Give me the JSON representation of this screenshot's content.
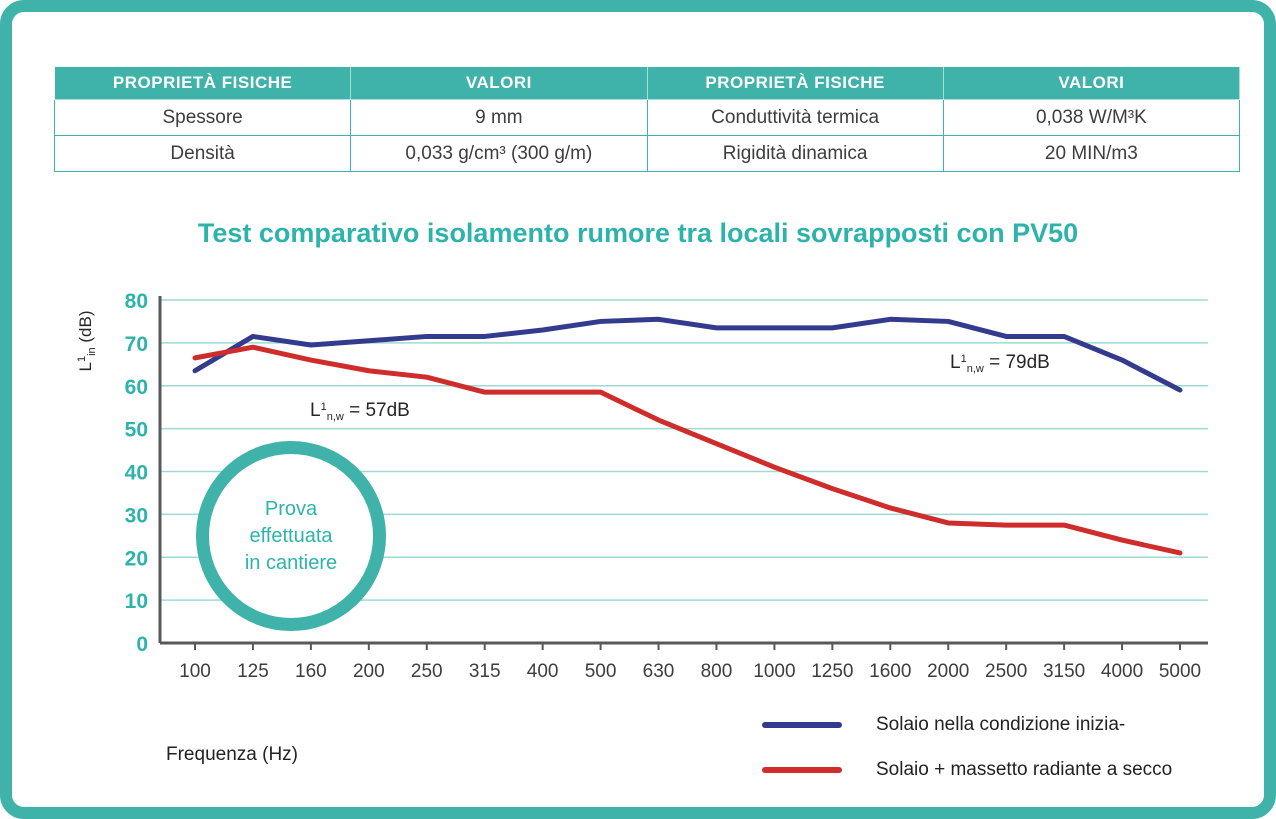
{
  "table": {
    "headers": [
      "PROPRIETÀ FISICHE",
      "VALORI",
      "PROPRIETÀ FISICHE",
      "VALORI"
    ],
    "rows": [
      [
        "Spessore",
        "9 mm",
        "Conduttività termica",
        "0,038 W/M³K"
      ],
      [
        "Densità",
        "0,033 g/cm³ (300 g/m)",
        "Rigidità dinamica",
        "20 MIN/m3"
      ]
    ]
  },
  "chart_data": {
    "type": "line",
    "title": "Test comparativo isolamento rumore tra locali sovrapposti con PV50",
    "xlabel": "Frequenza (Hz)",
    "ylabel": "L¹in (dB)",
    "ylabel_parts": {
      "prefix": "L",
      "sup": "1",
      "sub": "in",
      "rest": " (dB)"
    },
    "ylim": [
      0,
      80
    ],
    "ytick_step": 10,
    "grid": true,
    "legend_position": "bottom-right",
    "categories": [
      "100",
      "125",
      "160",
      "200",
      "250",
      "315",
      "400",
      "500",
      "630",
      "800",
      "1000",
      "1250",
      "1600",
      "2000",
      "2500",
      "3150",
      "4000",
      "5000"
    ],
    "series": [
      {
        "name": "Solaio nella condizione inizia-",
        "color": "#333b8f",
        "values": [
          63.5,
          71.5,
          69.5,
          70.5,
          71.5,
          71.5,
          73,
          75,
          75.5,
          73.5,
          73.5,
          73.5,
          75.5,
          75,
          71.5,
          71.5,
          66,
          59
        ]
      },
      {
        "name": "Solaio +  massetto radiante a secco",
        "color": "#cf2c2c",
        "values": [
          66.5,
          69,
          66,
          63.5,
          62,
          58.5,
          58.5,
          58.5,
          52,
          46.5,
          41,
          36,
          31.5,
          28,
          27.5,
          27.5,
          24,
          21
        ]
      }
    ],
    "annotations": [
      {
        "text": "L¹n,w = 57dB",
        "prefix": "L",
        "sup": "1",
        "sub": "n,w",
        "rest": " = 57dB"
      },
      {
        "text": "L¹n,w = 79dB",
        "prefix": "L",
        "sup": "1",
        "sub": "n,w",
        "rest": " = 79dB"
      }
    ]
  },
  "badge": {
    "lines": [
      "Prova",
      "effettuata",
      "in cantiere"
    ]
  },
  "colors": {
    "teal": "#3fb3a9",
    "title_teal": "#2eb3ab",
    "series_blue": "#333b8f",
    "series_red": "#cf2c2c",
    "grid": "#9ed9d3",
    "axis": "#57585a",
    "text_dark": "#3d3d3d"
  }
}
